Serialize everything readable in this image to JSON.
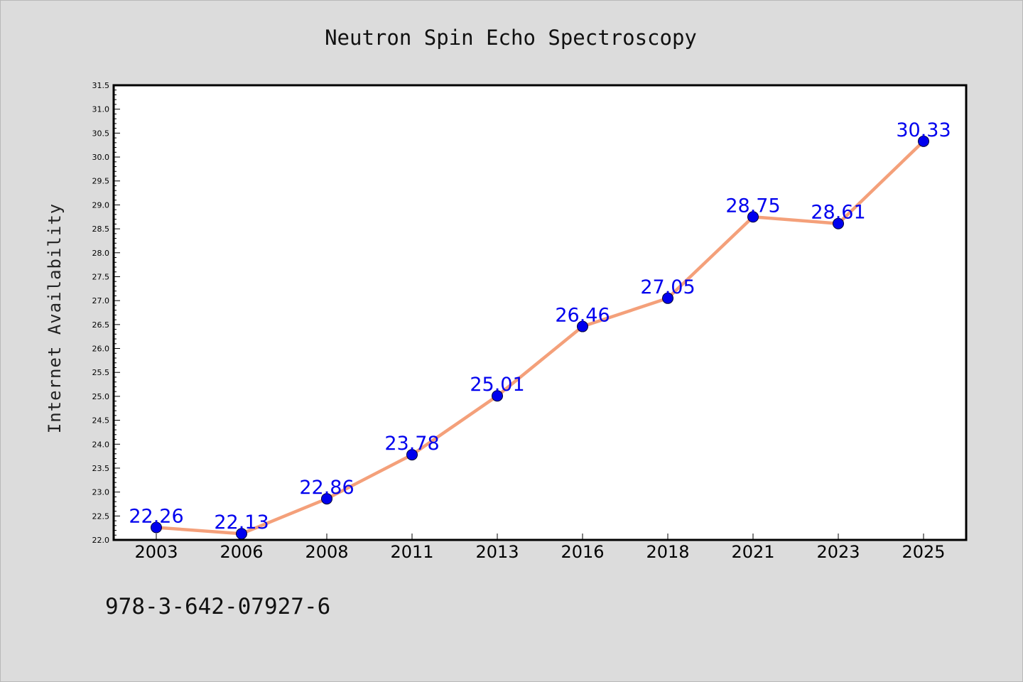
{
  "chart_data": {
    "type": "line",
    "title": "Neutron Spin Echo Spectroscopy",
    "xlabel": "",
    "ylabel": "Internet Availability",
    "categories": [
      "2003",
      "2006",
      "2008",
      "2011",
      "2013",
      "2016",
      "2018",
      "2021",
      "2023",
      "2025"
    ],
    "values": [
      22.26,
      22.13,
      22.86,
      23.78,
      25.01,
      26.46,
      27.05,
      28.75,
      28.61,
      30.33
    ],
    "data_labels": [
      "22.26",
      "22.13",
      "22.86",
      "23.78",
      "25.01",
      "26.46",
      "27.05",
      "28.75",
      "28.61",
      "30.33"
    ],
    "yticks": [
      "22.0",
      "22.5",
      "23.0",
      "23.5",
      "24.0",
      "24.5",
      "25.0",
      "25.5",
      "26.0",
      "26.5",
      "27.0",
      "27.5",
      "28.0",
      "28.5",
      "29.0",
      "29.5",
      "30.0",
      "30.5",
      "31.0",
      "31.5"
    ],
    "ylim": [
      22.0,
      31.5
    ],
    "grid": false,
    "legend": "none",
    "line_color": "#f4a07a",
    "marker_color": "#0000ee",
    "label_color": "#0000ee"
  },
  "annotation": "978-3-642-07927-6"
}
